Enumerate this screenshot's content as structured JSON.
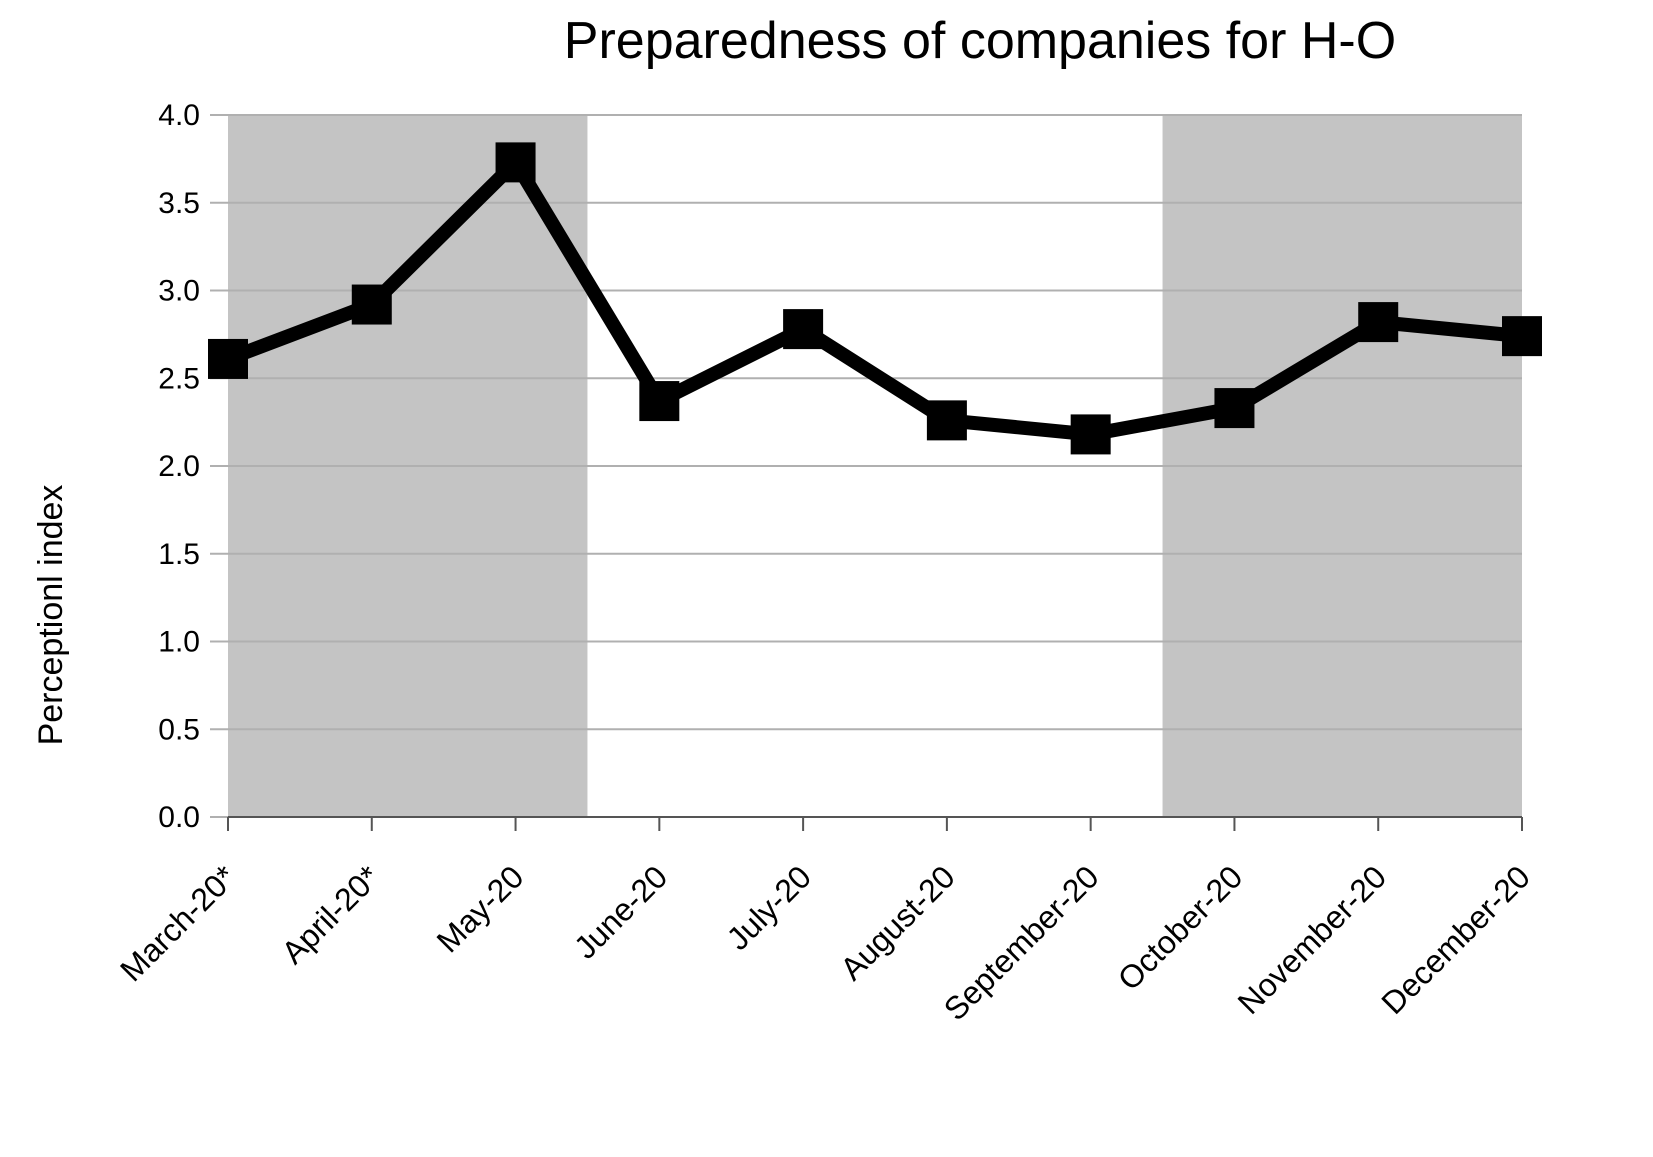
{
  "chart_data": {
    "type": "line",
    "title": "Preparedness of companies for H-O",
    "xlabel": "",
    "ylabel": "Perceptionl index",
    "categories": [
      "March-20*",
      "April-20*",
      "May-20",
      "June-20",
      "July-20",
      "August-20",
      "September-20",
      "October-20",
      "November-20",
      "December-20"
    ],
    "series": [
      {
        "values": [
          2.61,
          2.92,
          3.73,
          2.37,
          2.78,
          2.26,
          2.18,
          2.33,
          2.82,
          2.74
        ]
      }
    ],
    "ylim": [
      0,
      4
    ],
    "yticks": [
      "0.0",
      "0.5",
      "1.0",
      "1.5",
      "2.0",
      "2.5",
      "3.0",
      "3.5",
      "4.0"
    ],
    "grid": true,
    "shaded_periods": [
      {
        "from": "March-20*",
        "to": "May-20"
      },
      {
        "from": "October-20",
        "to": "December-20"
      }
    ],
    "colors": {
      "line": "#000000",
      "shade": "#c4c4c4",
      "grid": "#b0b0b0",
      "axis": "#555555"
    }
  }
}
